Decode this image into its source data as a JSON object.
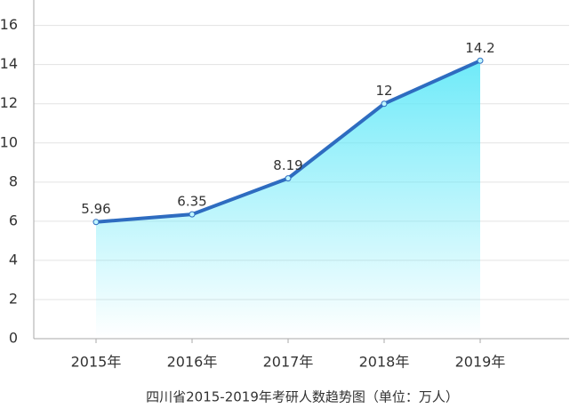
{
  "chart_data": {
    "type": "line",
    "caption": "四川省2015-2019年考研人数趋势图（单位：万人）",
    "categories": [
      "2015年",
      "2016年",
      "2017年",
      "2018年",
      "2019年"
    ],
    "values": [
      5.96,
      6.35,
      8.19,
      12,
      14.2
    ],
    "color": "#2e6cc0",
    "area_color": "#5fe8f8",
    "ylim": [
      0,
      17.3
    ],
    "yticks": [
      0,
      2,
      4,
      6,
      8,
      10,
      12,
      14,
      16
    ],
    "grid": true
  }
}
